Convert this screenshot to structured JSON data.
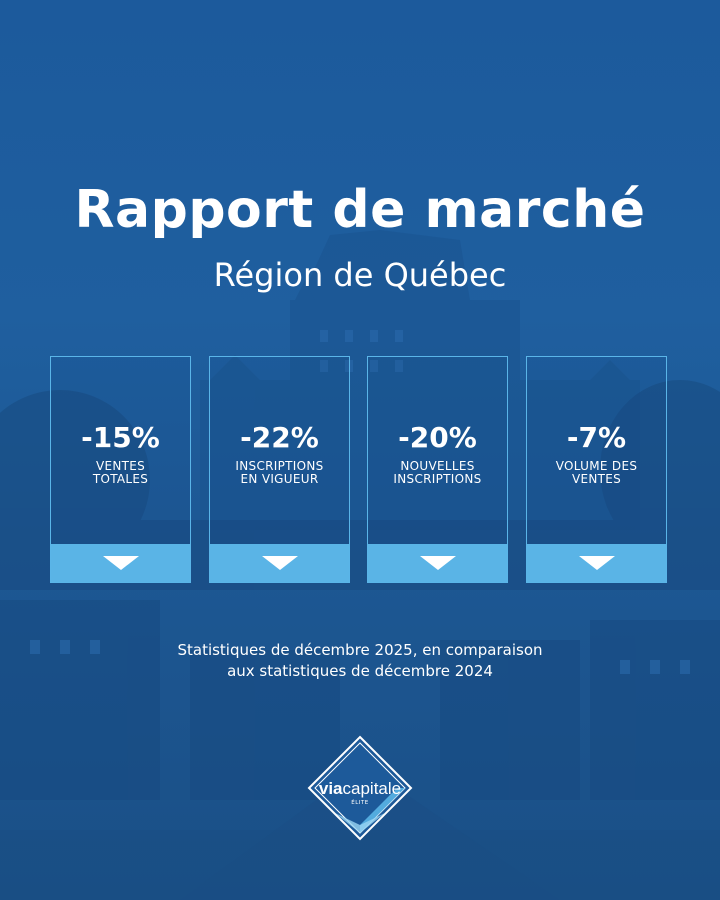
{
  "header": {
    "title": "Rapport de marché",
    "subtitle": "Région de Québec"
  },
  "stats": [
    {
      "value": "-15%",
      "label_line1": "VENTES",
      "label_line2": "TOTALES",
      "direction": "down"
    },
    {
      "value": "-22%",
      "label_line1": "INSCRIPTIONS",
      "label_line2": "EN VIGUEUR",
      "direction": "down"
    },
    {
      "value": "-20%",
      "label_line1": "NOUVELLES",
      "label_line2": "INSCRIPTIONS",
      "direction": "down"
    },
    {
      "value": "-7%",
      "label_line1": "VOLUME DES",
      "label_line2": "VENTES",
      "direction": "down"
    }
  ],
  "footnote": {
    "line1": "Statistiques de décembre 2025, en comparaison",
    "line2": "aux statistiques de décembre 2024"
  },
  "logo": {
    "brand_bold": "via",
    "brand_rest": "capitale",
    "sub": "ÉLITE"
  },
  "colors": {
    "background": "#1c5a9c",
    "accent": "#5ab4e6",
    "text": "#ffffff"
  },
  "icons": [
    "down-arrow-icon",
    "chateau-background",
    "viacapitale-logo"
  ]
}
